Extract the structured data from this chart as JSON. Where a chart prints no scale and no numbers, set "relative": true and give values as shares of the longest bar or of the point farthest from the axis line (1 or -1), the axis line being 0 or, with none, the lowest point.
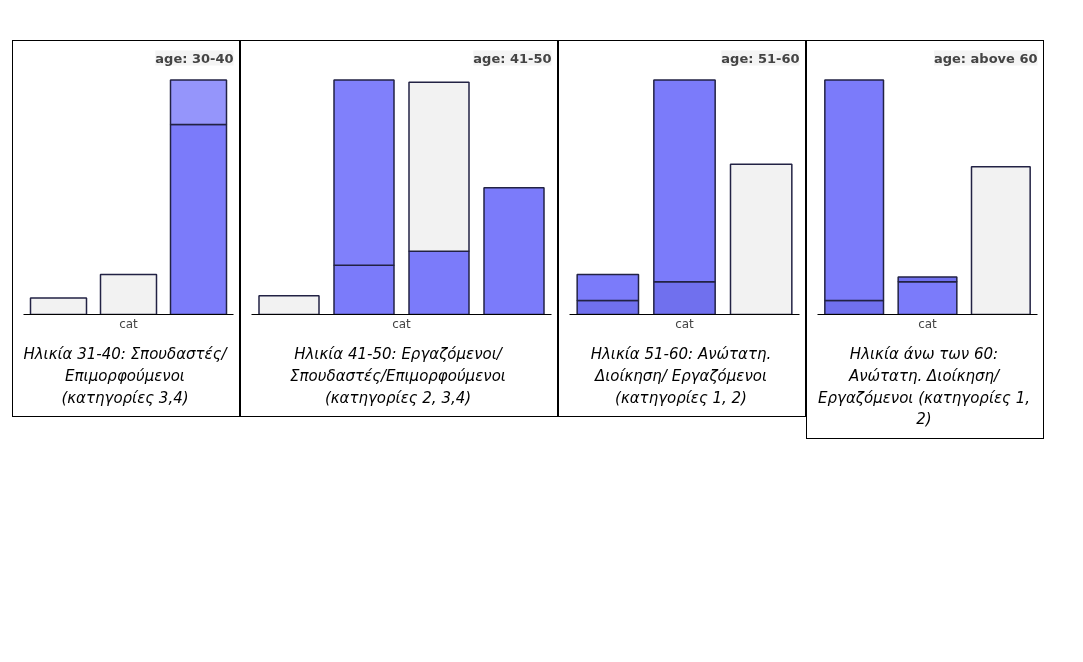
{
  "chart_data": [
    {
      "type": "bar",
      "title": "age: 30-40",
      "xlabel": "cat",
      "categories": [
        null,
        null,
        null
      ],
      "relative": true,
      "stacked": true,
      "grid": false,
      "series": [
        {
          "values": [
            0.07,
            0.17,
            0.81
          ],
          "colors": [
            "#f2f2f2",
            "#f2f2f2",
            "#7b7bfa"
          ]
        },
        {
          "values": [
            null,
            null,
            0.19
          ],
          "colors": [
            null,
            null,
            "#9595fb"
          ]
        }
      ],
      "annotations": [
        "Ηλικία 31-40: Σπουδαστές/ Επιμορφούμενοι (κατηγορίες 3,4)"
      ]
    },
    {
      "type": "bar",
      "title": "age: 41-50",
      "xlabel": "cat",
      "categories": [
        null,
        null,
        null,
        null
      ],
      "relative": true,
      "stacked": true,
      "grid": false,
      "series": [
        {
          "values": [
            0.08,
            0.21,
            0.27,
            0.54
          ],
          "colors": [
            "#f2f2f2",
            "#7b7bfa",
            "#7b7bfa",
            "#7b7bfa"
          ]
        },
        {
          "values": [
            null,
            0.79,
            0.72,
            null
          ],
          "colors": [
            null,
            "#8080fb",
            "#f2f2f2",
            null
          ]
        }
      ],
      "annotations": [
        "Ηλικία 41-50: Εργαζόμενοι/Σπουδαστές/Επιμορφούμενοι (κατηγορίες 2, 3,4)"
      ]
    },
    {
      "type": "bar",
      "title": "age: 51-60",
      "xlabel": "cat",
      "categories": [
        null,
        null,
        null
      ],
      "relative": true,
      "stacked": true,
      "grid": false,
      "series": [
        {
          "values": [
            0.06,
            0.14,
            0.64
          ],
          "colors": [
            "#7070ee",
            "#7070ee",
            "#f2f2f2"
          ]
        },
        {
          "values": [
            0.11,
            0.86,
            null
          ],
          "colors": [
            "#7b7bfa",
            "#7b7bfa",
            null
          ]
        }
      ],
      "annotations": [
        "Ηλικία 51-60: Ανώτατη. Διοίκηση/ Εργαζόμενοι (κατηγορίες 1, 2)"
      ]
    },
    {
      "type": "bar",
      "title": "age: above 60",
      "xlabel": "cat",
      "categories": [
        null,
        null,
        null
      ],
      "relative": true,
      "stacked": true,
      "grid": false,
      "series": [
        {
          "values": [
            0.06,
            0.14,
            0.63
          ],
          "colors": [
            "#7070ee",
            "#7b7bfa",
            "#f2f2f2"
          ]
        },
        {
          "values": [
            0.94,
            0.02,
            null
          ],
          "colors": [
            "#7b7bfa",
            "#7070ee",
            null
          ]
        }
      ],
      "annotations": [
        "Ηλικία άνω των 60: Ανώτατη. Διοίκηση/ Εργαζόμενοι (κατηγορίες 1, 2)"
      ]
    }
  ]
}
